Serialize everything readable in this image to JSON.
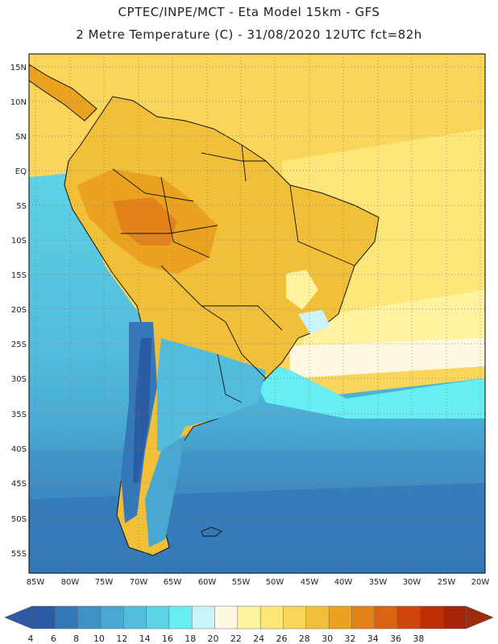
{
  "header": {
    "line1": "CPTEC/INPE/MCT -  Eta Model 15km - GFS",
    "line2": "2 Metre Temperature (C) - 31/08/2020 12UTC fct=82h"
  },
  "map": {
    "lat_labels": [
      "15N",
      "10N",
      "5N",
      "EQ",
      "5S",
      "10S",
      "15S",
      "20S",
      "25S",
      "30S",
      "35S",
      "40S",
      "45S",
      "50S",
      "55S"
    ],
    "lon_labels": [
      "85W",
      "80W",
      "75W",
      "70W",
      "65W",
      "60W",
      "55W",
      "50W",
      "45W",
      "40W",
      "35W",
      "30W",
      "25W",
      "20W"
    ]
  },
  "colorbar": {
    "values": [
      "4",
      "6",
      "8",
      "10",
      "12",
      "14",
      "16",
      "18",
      "20",
      "22",
      "24",
      "26",
      "28",
      "30",
      "32",
      "34",
      "36",
      "38"
    ],
    "colors": [
      "#2a5ca6",
      "#3478b8",
      "#3f92c6",
      "#48a8d2",
      "#52bcdc",
      "#5cd2e4",
      "#66eef2",
      "#c8f4fa",
      "#fff8e0",
      "#fff3a0",
      "#fde778",
      "#f9d65a",
      "#f2bf38",
      "#eba21e",
      "#e28218",
      "#da6412",
      "#cf470a",
      "#c02e06",
      "#a6240a"
    ],
    "end_left": "#2d5aa2",
    "end_right": "#a12a0b"
  }
}
